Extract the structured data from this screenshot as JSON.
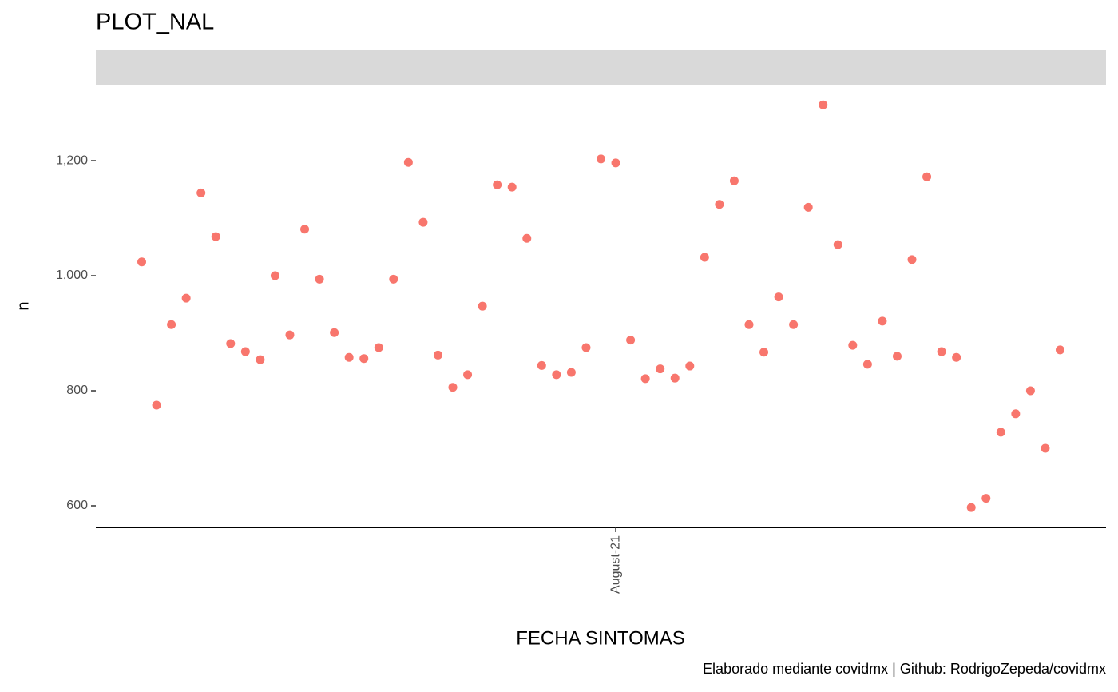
{
  "chart_data": {
    "type": "scatter",
    "title": "PLOT_NAL",
    "x_label": "FECHA SINTOMAS",
    "y_label": "n",
    "caption": "Elaborado mediante covidmx | Github: RodrigoZepeda/covidmx",
    "categories": [
      null,
      null,
      null,
      null,
      null,
      null,
      null,
      null,
      null,
      null,
      null,
      null,
      null,
      null,
      null,
      null,
      null,
      null,
      null,
      null,
      null,
      null,
      null,
      null,
      null,
      null,
      null,
      null,
      null,
      null,
      null,
      null,
      "August-21",
      null,
      null,
      null,
      null,
      null,
      null,
      null,
      null,
      null,
      null,
      null,
      null,
      null,
      null,
      null,
      null,
      null,
      null,
      null,
      null,
      null,
      null,
      null,
      null,
      null,
      null,
      null,
      null,
      null,
      null
    ],
    "values": [
      1024,
      775,
      915,
      961,
      1144,
      1068,
      882,
      868,
      854,
      1000,
      897,
      1081,
      994,
      901,
      858,
      856,
      875,
      994,
      1197,
      1093,
      862,
      806,
      828,
      947,
      1158,
      1154,
      1065,
      844,
      828,
      832,
      875,
      1203,
      1196,
      888,
      821,
      838,
      822,
      843,
      1032,
      1124,
      1165,
      915,
      867,
      963,
      915,
      1119,
      1297,
      1054,
      879,
      846,
      921,
      860,
      1028,
      1172,
      868,
      858,
      597,
      613,
      728,
      760,
      800,
      700,
      871
    ],
    "color": "#F8766D",
    "ylim": [
      562.5,
      1332
    ],
    "yticks": [
      600,
      800,
      {
        "value": 1000,
        "label": "1,000"
      },
      {
        "value": 1200,
        "label": "1,200"
      }
    ]
  }
}
